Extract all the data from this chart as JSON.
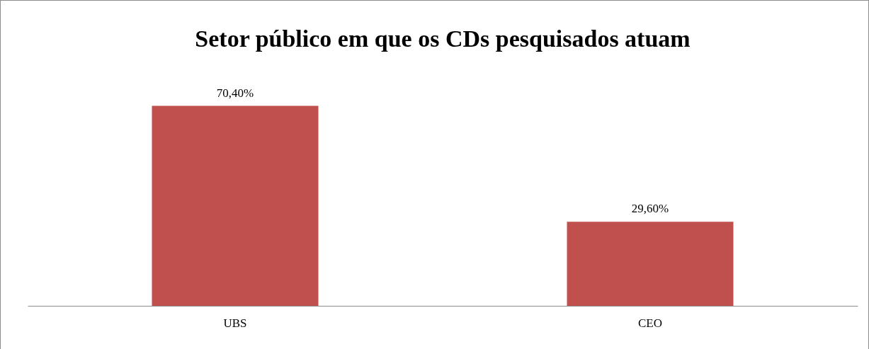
{
  "chart_data": {
    "type": "bar",
    "title": "Setor público em que os CDs pesquisados atuam",
    "categories": [
      "UBS",
      "CEO"
    ],
    "values": [
      70.4,
      29.6
    ],
    "value_labels": [
      "70,40%",
      "29,60%"
    ],
    "color": "#c0504d"
  }
}
